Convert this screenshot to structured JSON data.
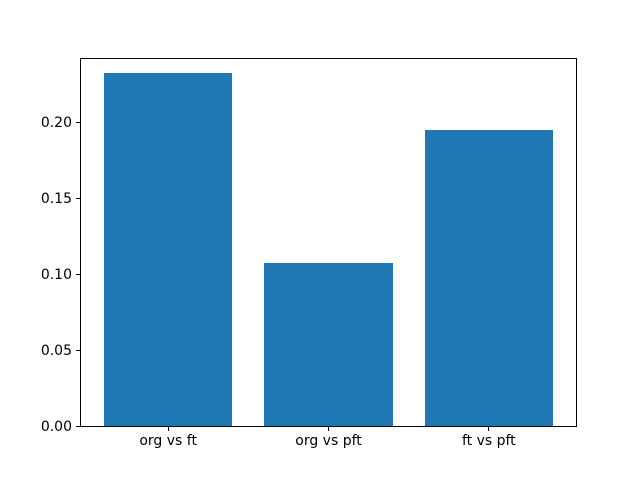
{
  "chart_data": {
    "type": "bar",
    "title": "",
    "xlabel": "",
    "ylabel": "",
    "categories": [
      "org vs ft",
      "org vs pft",
      "ft vs pft"
    ],
    "values": [
      0.232,
      0.107,
      0.195
    ],
    "bar_color": "#1f77b4",
    "bar_width": 0.8,
    "ylim": [
      0,
      0.2428
    ],
    "xlim": [
      -0.55,
      2.55
    ],
    "yticks": [
      "0.00",
      "0.05",
      "0.10",
      "0.15",
      "0.20"
    ],
    "grid": false,
    "legend": false,
    "background_color": "#ffffff",
    "axis_color": "#000000"
  }
}
